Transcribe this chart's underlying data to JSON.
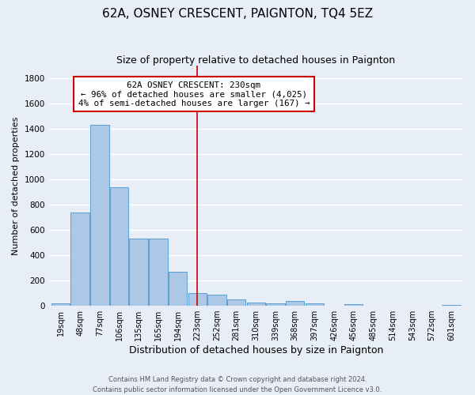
{
  "title": "62A, OSNEY CRESCENT, PAIGNTON, TQ4 5EZ",
  "subtitle": "Size of property relative to detached houses in Paignton",
  "xlabel": "Distribution of detached houses by size in Paignton",
  "ylabel": "Number of detached properties",
  "bar_labels": [
    "19sqm",
    "48sqm",
    "77sqm",
    "106sqm",
    "135sqm",
    "165sqm",
    "194sqm",
    "223sqm",
    "252sqm",
    "281sqm",
    "310sqm",
    "339sqm",
    "368sqm",
    "397sqm",
    "426sqm",
    "456sqm",
    "485sqm",
    "514sqm",
    "543sqm",
    "572sqm",
    "601sqm"
  ],
  "bar_values": [
    20,
    735,
    1430,
    940,
    530,
    530,
    270,
    100,
    90,
    50,
    25,
    20,
    35,
    20,
    0,
    10,
    0,
    0,
    0,
    0,
    5
  ],
  "bar_color": "#adc8e6",
  "bar_edge_color": "#5a9fd4",
  "vline_x_index": 7,
  "vline_color": "#cc0000",
  "ylim": [
    0,
    1900
  ],
  "yticks": [
    0,
    200,
    400,
    600,
    800,
    1000,
    1200,
    1400,
    1600,
    1800
  ],
  "annotation_title": "62A OSNEY CRESCENT: 230sqm",
  "annotation_line1": "← 96% of detached houses are smaller (4,025)",
  "annotation_line2": "4% of semi-detached houses are larger (167) →",
  "annotation_box_color": "#ffffff",
  "annotation_box_edge": "#cc0000",
  "footer_line1": "Contains HM Land Registry data © Crown copyright and database right 2024.",
  "footer_line2": "Contains public sector information licensed under the Open Government Licence v3.0.",
  "background_color": "#e8eef7",
  "grid_color": "#ffffff",
  "title_fontsize": 11,
  "subtitle_fontsize": 9,
  "ylabel_fontsize": 8,
  "xlabel_fontsize": 9
}
